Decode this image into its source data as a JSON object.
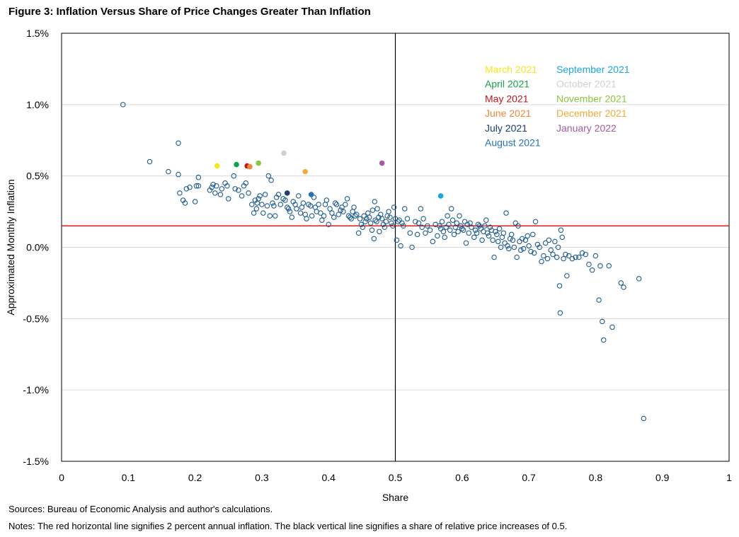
{
  "figure": {
    "title": "Figure 3: Inflation Versus Share of Price Changes Greater Than Inflation",
    "sources": "Sources: Bureau of Economic Analysis and author's calculations.",
    "notes": "Notes: The red horizontal line signifies 2 percent annual inflation. The black vertical line signifies a share of relative price increases of 0.5."
  },
  "chart_data": {
    "type": "scatter",
    "xlabel": "Share",
    "ylabel": "Approximated Monthly Inflation",
    "xlim": [
      0,
      1
    ],
    "ylim": [
      -1.5,
      1.5
    ],
    "x_ticks": [
      "0",
      "0.1",
      "0.2",
      "0.3",
      "0.4",
      "0.5",
      "0.6",
      "0.7",
      "0.8",
      "0.9",
      "1"
    ],
    "y_ticks": [
      "1.5%",
      "1.0%",
      "0.5%",
      "0.0%",
      "-0.5%",
      "-1.0%",
      "-1.5%"
    ],
    "y_tick_values": [
      1.5,
      1.0,
      0.5,
      0.0,
      -0.5,
      -1.0,
      -1.5
    ],
    "grid": "horizontal",
    "reference_lines": [
      {
        "orientation": "horizontal",
        "value": 0.15,
        "color": "#e31a1c"
      },
      {
        "orientation": "vertical",
        "value": 0.5,
        "color": "#000000"
      }
    ],
    "legend_position": "top-right",
    "highlighted": [
      {
        "name": "March 2021",
        "x": 0.233,
        "y": 0.57,
        "color": "#f5e61c"
      },
      {
        "name": "April 2021",
        "x": 0.262,
        "y": 0.58,
        "color": "#12a34a"
      },
      {
        "name": "May 2021",
        "x": 0.278,
        "y": 0.57,
        "color": "#c0161f"
      },
      {
        "name": "June 2021",
        "x": 0.282,
        "y": 0.565,
        "color": "#f0863a"
      },
      {
        "name": "July 2021",
        "x": 0.338,
        "y": 0.38,
        "color": "#1b3f6e"
      },
      {
        "name": "August 2021",
        "x": 0.374,
        "y": 0.37,
        "color": "#2472b8"
      },
      {
        "name": "September 2021",
        "x": 0.568,
        "y": 0.36,
        "color": "#19a6dc"
      },
      {
        "name": "October 2021",
        "x": 0.333,
        "y": 0.66,
        "color": "#d0d0d0"
      },
      {
        "name": "November 2021",
        "x": 0.295,
        "y": 0.59,
        "color": "#8cc63f"
      },
      {
        "name": "December 2021",
        "x": 0.365,
        "y": 0.53,
        "color": "#f2a93b"
      },
      {
        "name": "January 2022",
        "x": 0.48,
        "y": 0.59,
        "color": "#a55aa8"
      }
    ],
    "legend_columns": [
      [
        "March 2021",
        "April 2021",
        "May 2021",
        "June 2021",
        "July 2021",
        "August 2021"
      ],
      [
        "September 2021",
        "October 2021",
        "November 2021",
        "December 2021",
        "January 2022"
      ]
    ],
    "points": [
      [
        0.092,
        1.0
      ],
      [
        0.132,
        0.6
      ],
      [
        0.16,
        0.53
      ],
      [
        0.175,
        0.73
      ],
      [
        0.175,
        0.51
      ],
      [
        0.177,
        0.38
      ],
      [
        0.182,
        0.33
      ],
      [
        0.185,
        0.31
      ],
      [
        0.187,
        0.41
      ],
      [
        0.192,
        0.42
      ],
      [
        0.2,
        0.32
      ],
      [
        0.202,
        0.43
      ],
      [
        0.205,
        0.49
      ],
      [
        0.205,
        0.43
      ],
      [
        0.222,
        0.4
      ],
      [
        0.225,
        0.42
      ],
      [
        0.227,
        0.44
      ],
      [
        0.23,
        0.38
      ],
      [
        0.232,
        0.43
      ],
      [
        0.238,
        0.37
      ],
      [
        0.24,
        0.41
      ],
      [
        0.245,
        0.45
      ],
      [
        0.248,
        0.43
      ],
      [
        0.25,
        0.34
      ],
      [
        0.258,
        0.5
      ],
      [
        0.26,
        0.41
      ],
      [
        0.265,
        0.4
      ],
      [
        0.27,
        0.36
      ],
      [
        0.273,
        0.43
      ],
      [
        0.276,
        0.45
      ],
      [
        0.28,
        0.38
      ],
      [
        0.285,
        0.3
      ],
      [
        0.288,
        0.24
      ],
      [
        0.29,
        0.33
      ],
      [
        0.292,
        0.27
      ],
      [
        0.293,
        0.31
      ],
      [
        0.295,
        0.34
      ],
      [
        0.297,
        0.36
      ],
      [
        0.3,
        0.3
      ],
      [
        0.302,
        0.24
      ],
      [
        0.305,
        0.37
      ],
      [
        0.308,
        0.29
      ],
      [
        0.31,
        0.5
      ],
      [
        0.312,
        0.22
      ],
      [
        0.314,
        0.47
      ],
      [
        0.316,
        0.31
      ],
      [
        0.318,
        0.29
      ],
      [
        0.32,
        0.22
      ],
      [
        0.322,
        0.35
      ],
      [
        0.325,
        0.37
      ],
      [
        0.328,
        0.3
      ],
      [
        0.332,
        0.34
      ],
      [
        0.335,
        0.33
      ],
      [
        0.338,
        0.28
      ],
      [
        0.34,
        0.27
      ],
      [
        0.342,
        0.25
      ],
      [
        0.345,
        0.21
      ],
      [
        0.347,
        0.32
      ],
      [
        0.35,
        0.3
      ],
      [
        0.352,
        0.27
      ],
      [
        0.355,
        0.36
      ],
      [
        0.358,
        0.24
      ],
      [
        0.36,
        0.28
      ],
      [
        0.362,
        0.31
      ],
      [
        0.365,
        0.23
      ],
      [
        0.367,
        0.2
      ],
      [
        0.37,
        0.3
      ],
      [
        0.373,
        0.29
      ],
      [
        0.375,
        0.22
      ],
      [
        0.378,
        0.35
      ],
      [
        0.38,
        0.28
      ],
      [
        0.382,
        0.25
      ],
      [
        0.385,
        0.3
      ],
      [
        0.388,
        0.24
      ],
      [
        0.39,
        0.19
      ],
      [
        0.393,
        0.22
      ],
      [
        0.395,
        0.3
      ],
      [
        0.397,
        0.33
      ],
      [
        0.4,
        0.16
      ],
      [
        0.402,
        0.27
      ],
      [
        0.405,
        0.24
      ],
      [
        0.408,
        0.21
      ],
      [
        0.41,
        0.31
      ],
      [
        0.412,
        0.3
      ],
      [
        0.415,
        0.23
      ],
      [
        0.418,
        0.26
      ],
      [
        0.42,
        0.28
      ],
      [
        0.422,
        0.25
      ],
      [
        0.425,
        0.3
      ],
      [
        0.428,
        0.34
      ],
      [
        0.43,
        0.22
      ],
      [
        0.432,
        0.21
      ],
      [
        0.434,
        0.2
      ],
      [
        0.436,
        0.25
      ],
      [
        0.438,
        0.28
      ],
      [
        0.44,
        0.22
      ],
      [
        0.442,
        0.23
      ],
      [
        0.445,
        0.1
      ],
      [
        0.447,
        0.2
      ],
      [
        0.449,
        0.16
      ],
      [
        0.451,
        0.14
      ],
      [
        0.453,
        0.22
      ],
      [
        0.455,
        0.18
      ],
      [
        0.457,
        0.2
      ],
      [
        0.459,
        0.24
      ],
      [
        0.461,
        0.21
      ],
      [
        0.463,
        0.17
      ],
      [
        0.465,
        0.12
      ],
      [
        0.466,
        0.26
      ],
      [
        0.468,
        0.06
      ],
      [
        0.469,
        0.32
      ],
      [
        0.47,
        0.19
      ],
      [
        0.472,
        0.18
      ],
      [
        0.473,
        0.27
      ],
      [
        0.475,
        0.21
      ],
      [
        0.476,
        0.11
      ],
      [
        0.478,
        0.23
      ],
      [
        0.48,
        0.2
      ],
      [
        0.482,
        0.16
      ],
      [
        0.484,
        0.14
      ],
      [
        0.486,
        0.18
      ],
      [
        0.488,
        0.22
      ],
      [
        0.49,
        0.25
      ],
      [
        0.492,
        0.21
      ],
      [
        0.494,
        0.17
      ],
      [
        0.496,
        0.15
      ],
      [
        0.498,
        0.28
      ],
      [
        0.5,
        0.2
      ],
      [
        0.502,
        0.05
      ],
      [
        0.504,
        0.18
      ],
      [
        0.506,
        0.19
      ],
      [
        0.508,
        0.01
      ],
      [
        0.51,
        0.17
      ],
      [
        0.512,
        0.15
      ],
      [
        0.514,
        0.27
      ],
      [
        0.518,
        0.2
      ],
      [
        0.522,
        0.1
      ],
      [
        0.525,
        0.0
      ],
      [
        0.53,
        0.18
      ],
      [
        0.533,
        0.09
      ],
      [
        0.535,
        0.17
      ],
      [
        0.538,
        0.27
      ],
      [
        0.54,
        0.14
      ],
      [
        0.542,
        0.2
      ],
      [
        0.545,
        0.1
      ],
      [
        0.548,
        0.15
      ],
      [
        0.552,
        0.12
      ],
      [
        0.556,
        0.04
      ],
      [
        0.56,
        0.16
      ],
      [
        0.563,
        0.08
      ],
      [
        0.566,
        0.15
      ],
      [
        0.568,
        0.13
      ],
      [
        0.57,
        0.18
      ],
      [
        0.572,
        0.11
      ],
      [
        0.574,
        0.07
      ],
      [
        0.576,
        0.14
      ],
      [
        0.578,
        0.22
      ],
      [
        0.58,
        0.16
      ],
      [
        0.582,
        0.12
      ],
      [
        0.584,
        0.27
      ],
      [
        0.586,
        0.19
      ],
      [
        0.588,
        0.09
      ],
      [
        0.59,
        0.14
      ],
      [
        0.592,
        0.17
      ],
      [
        0.594,
        0.11
      ],
      [
        0.596,
        0.22
      ],
      [
        0.598,
        0.15
      ],
      [
        0.6,
        0.13
      ],
      [
        0.602,
        0.12
      ],
      [
        0.604,
        0.18
      ],
      [
        0.606,
        0.03
      ],
      [
        0.608,
        0.16
      ],
      [
        0.61,
        0.1
      ],
      [
        0.612,
        0.17
      ],
      [
        0.614,
        0.14
      ],
      [
        0.618,
        0.07
      ],
      [
        0.62,
        0.12
      ],
      [
        0.622,
        0.1
      ],
      [
        0.624,
        0.16
      ],
      [
        0.626,
        0.15
      ],
      [
        0.628,
        0.13
      ],
      [
        0.63,
        0.05
      ],
      [
        0.632,
        0.11
      ],
      [
        0.634,
        0.15
      ],
      [
        0.636,
        0.19
      ],
      [
        0.638,
        0.1
      ],
      [
        0.64,
        0.08
      ],
      [
        0.642,
        0.14
      ],
      [
        0.644,
        0.12
      ],
      [
        0.646,
        0.05
      ],
      [
        0.648,
        -0.07
      ],
      [
        0.65,
        0.11
      ],
      [
        0.652,
        0.09
      ],
      [
        0.654,
        0.04
      ],
      [
        0.656,
        0.13
      ],
      [
        0.658,
        0.0
      ],
      [
        0.66,
        0.07
      ],
      [
        0.662,
        0.1
      ],
      [
        0.664,
        0.03
      ],
      [
        0.666,
        0.24
      ],
      [
        0.668,
        0.01
      ],
      [
        0.67,
        -0.01
      ],
      [
        0.672,
        0.06
      ],
      [
        0.674,
        0.09
      ],
      [
        0.676,
        0.05
      ],
      [
        0.678,
        0.0
      ],
      [
        0.68,
        0.17
      ],
      [
        0.682,
        -0.07
      ],
      [
        0.684,
        0.15
      ],
      [
        0.686,
        0.04
      ],
      [
        0.688,
        -0.02
      ],
      [
        0.69,
        0.06
      ],
      [
        0.692,
        -0.01
      ],
      [
        0.695,
        0.05
      ],
      [
        0.698,
        0.08
      ],
      [
        0.7,
        0.01
      ],
      [
        0.703,
        -0.03
      ],
      [
        0.706,
        0.09
      ],
      [
        0.708,
        -0.04
      ],
      [
        0.71,
        0.18
      ],
      [
        0.713,
        0.02
      ],
      [
        0.716,
        0.0
      ],
      [
        0.719,
        -0.1
      ],
      [
        0.722,
        -0.06
      ],
      [
        0.725,
        0.03
      ],
      [
        0.728,
        -0.08
      ],
      [
        0.73,
        0.05
      ],
      [
        0.733,
        -0.02
      ],
      [
        0.736,
        -0.05
      ],
      [
        0.739,
        0.04
      ],
      [
        0.742,
        -0.07
      ],
      [
        0.744,
        0.0
      ],
      [
        0.746,
        -0.27
      ],
      [
        0.747,
        -0.46
      ],
      [
        0.748,
        0.12
      ],
      [
        0.75,
        0.07
      ],
      [
        0.752,
        -0.08
      ],
      [
        0.755,
        -0.05
      ],
      [
        0.757,
        -0.2
      ],
      [
        0.76,
        -0.06
      ],
      [
        0.765,
        -0.08
      ],
      [
        0.77,
        -0.07
      ],
      [
        0.775,
        -0.07
      ],
      [
        0.78,
        -0.04
      ],
      [
        0.785,
        -0.05
      ],
      [
        0.79,
        -0.12
      ],
      [
        0.795,
        -0.16
      ],
      [
        0.8,
        -0.06
      ],
      [
        0.805,
        -0.37
      ],
      [
        0.807,
        -0.13
      ],
      [
        0.81,
        -0.52
      ],
      [
        0.812,
        -0.65
      ],
      [
        0.82,
        -0.13
      ],
      [
        0.825,
        -0.56
      ],
      [
        0.838,
        -0.25
      ],
      [
        0.842,
        -0.28
      ],
      [
        0.865,
        -0.22
      ],
      [
        0.872,
        -1.2
      ]
    ]
  }
}
